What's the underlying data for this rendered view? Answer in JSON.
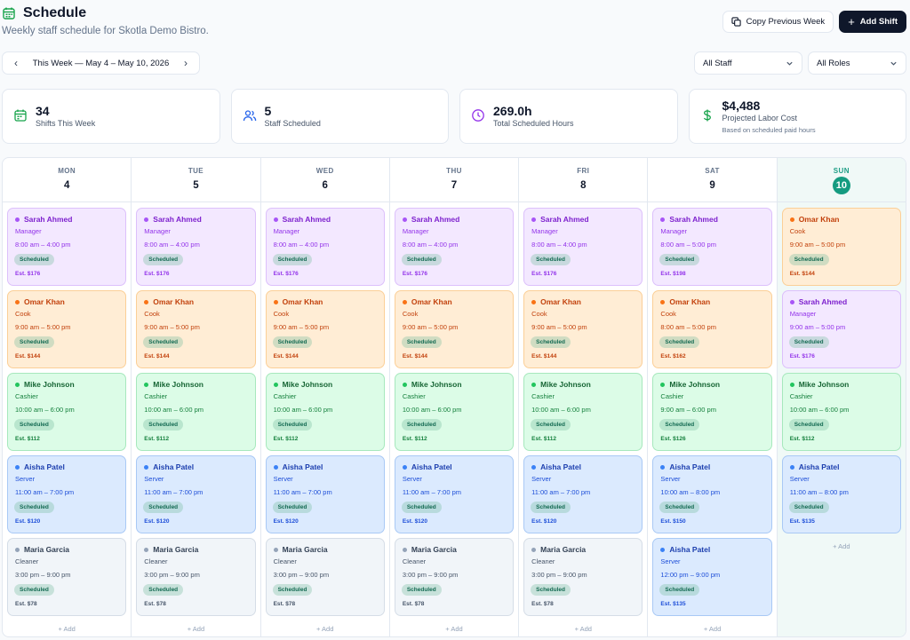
{
  "header": {
    "title": "Schedule",
    "subtitle": "Weekly staff schedule for Skotla Demo Bistro.",
    "copy_label": "Copy Previous Week",
    "add_label": "Add Shift"
  },
  "toolbar": {
    "week_label": "This Week — May 4 – May 10, 2026",
    "staff_filter": "All Staff",
    "role_filter": "All Roles"
  },
  "stats": [
    {
      "value": "34",
      "label": "Shifts This Week",
      "icon": "calendar-icon",
      "color": "#16a34a"
    },
    {
      "value": "5",
      "label": "Staff Scheduled",
      "icon": "users-icon",
      "color": "#2563eb"
    },
    {
      "value": "269.0h",
      "label": "Total Scheduled Hours",
      "icon": "clock-icon",
      "color": "#9333ea"
    },
    {
      "value": "$4,488",
      "label": "Projected Labor Cost",
      "note": "Based on scheduled paid hours",
      "icon": "dollar-icon",
      "color": "#16a34a"
    }
  ],
  "add_label": "+ Add",
  "days": [
    {
      "dow": "MON",
      "num": "4",
      "today": false,
      "shifts": [
        {
          "name": "Sarah Ahmed",
          "role": "Manager",
          "time": "8:00 am – 4:00 pm",
          "status": "Scheduled",
          "est": "Est. $176",
          "color": "purple"
        },
        {
          "name": "Omar Khan",
          "role": "Cook",
          "time": "9:00 am – 5:00 pm",
          "status": "Scheduled",
          "est": "Est. $144",
          "color": "orange"
        },
        {
          "name": "Mike Johnson",
          "role": "Cashier",
          "time": "10:00 am – 6:00 pm",
          "status": "Scheduled",
          "est": "Est. $112",
          "color": "green"
        },
        {
          "name": "Aisha Patel",
          "role": "Server",
          "time": "11:00 am – 7:00 pm",
          "status": "Scheduled",
          "est": "Est. $120",
          "color": "blue"
        },
        {
          "name": "Maria Garcia",
          "role": "Cleaner",
          "time": "3:00 pm – 9:00 pm",
          "status": "Scheduled",
          "est": "Est. $78",
          "color": "gray"
        }
      ]
    },
    {
      "dow": "TUE",
      "num": "5",
      "today": false,
      "shifts": [
        {
          "name": "Sarah Ahmed",
          "role": "Manager",
          "time": "8:00 am – 4:00 pm",
          "status": "Scheduled",
          "est": "Est. $176",
          "color": "purple"
        },
        {
          "name": "Omar Khan",
          "role": "Cook",
          "time": "9:00 am – 5:00 pm",
          "status": "Scheduled",
          "est": "Est. $144",
          "color": "orange"
        },
        {
          "name": "Mike Johnson",
          "role": "Cashier",
          "time": "10:00 am – 6:00 pm",
          "status": "Scheduled",
          "est": "Est. $112",
          "color": "green"
        },
        {
          "name": "Aisha Patel",
          "role": "Server",
          "time": "11:00 am – 7:00 pm",
          "status": "Scheduled",
          "est": "Est. $120",
          "color": "blue"
        },
        {
          "name": "Maria Garcia",
          "role": "Cleaner",
          "time": "3:00 pm – 9:00 pm",
          "status": "Scheduled",
          "est": "Est. $78",
          "color": "gray"
        }
      ]
    },
    {
      "dow": "WED",
      "num": "6",
      "today": false,
      "shifts": [
        {
          "name": "Sarah Ahmed",
          "role": "Manager",
          "time": "8:00 am – 4:00 pm",
          "status": "Scheduled",
          "est": "Est. $176",
          "color": "purple"
        },
        {
          "name": "Omar Khan",
          "role": "Cook",
          "time": "9:00 am – 5:00 pm",
          "status": "Scheduled",
          "est": "Est. $144",
          "color": "orange"
        },
        {
          "name": "Mike Johnson",
          "role": "Cashier",
          "time": "10:00 am – 6:00 pm",
          "status": "Scheduled",
          "est": "Est. $112",
          "color": "green"
        },
        {
          "name": "Aisha Patel",
          "role": "Server",
          "time": "11:00 am – 7:00 pm",
          "status": "Scheduled",
          "est": "Est. $120",
          "color": "blue"
        },
        {
          "name": "Maria Garcia",
          "role": "Cleaner",
          "time": "3:00 pm – 9:00 pm",
          "status": "Scheduled",
          "est": "Est. $78",
          "color": "gray"
        }
      ]
    },
    {
      "dow": "THU",
      "num": "7",
      "today": false,
      "shifts": [
        {
          "name": "Sarah Ahmed",
          "role": "Manager",
          "time": "8:00 am – 4:00 pm",
          "status": "Scheduled",
          "est": "Est. $176",
          "color": "purple"
        },
        {
          "name": "Omar Khan",
          "role": "Cook",
          "time": "9:00 am – 5:00 pm",
          "status": "Scheduled",
          "est": "Est. $144",
          "color": "orange"
        },
        {
          "name": "Mike Johnson",
          "role": "Cashier",
          "time": "10:00 am – 6:00 pm",
          "status": "Scheduled",
          "est": "Est. $112",
          "color": "green"
        },
        {
          "name": "Aisha Patel",
          "role": "Server",
          "time": "11:00 am – 7:00 pm",
          "status": "Scheduled",
          "est": "Est. $120",
          "color": "blue"
        },
        {
          "name": "Maria Garcia",
          "role": "Cleaner",
          "time": "3:00 pm – 9:00 pm",
          "status": "Scheduled",
          "est": "Est. $78",
          "color": "gray"
        }
      ]
    },
    {
      "dow": "FRI",
      "num": "8",
      "today": false,
      "shifts": [
        {
          "name": "Sarah Ahmed",
          "role": "Manager",
          "time": "8:00 am – 4:00 pm",
          "status": "Scheduled",
          "est": "Est. $176",
          "color": "purple"
        },
        {
          "name": "Omar Khan",
          "role": "Cook",
          "time": "9:00 am – 5:00 pm",
          "status": "Scheduled",
          "est": "Est. $144",
          "color": "orange"
        },
        {
          "name": "Mike Johnson",
          "role": "Cashier",
          "time": "10:00 am – 6:00 pm",
          "status": "Scheduled",
          "est": "Est. $112",
          "color": "green"
        },
        {
          "name": "Aisha Patel",
          "role": "Server",
          "time": "11:00 am – 7:00 pm",
          "status": "Scheduled",
          "est": "Est. $120",
          "color": "blue"
        },
        {
          "name": "Maria Garcia",
          "role": "Cleaner",
          "time": "3:00 pm – 9:00 pm",
          "status": "Scheduled",
          "est": "Est. $78",
          "color": "gray"
        }
      ]
    },
    {
      "dow": "SAT",
      "num": "9",
      "today": false,
      "shifts": [
        {
          "name": "Sarah Ahmed",
          "role": "Manager",
          "time": "8:00 am – 5:00 pm",
          "status": "Scheduled",
          "est": "Est. $198",
          "color": "purple"
        },
        {
          "name": "Omar Khan",
          "role": "Cook",
          "time": "8:00 am – 5:00 pm",
          "status": "Scheduled",
          "est": "Est. $162",
          "color": "orange"
        },
        {
          "name": "Mike Johnson",
          "role": "Cashier",
          "time": "9:00 am – 6:00 pm",
          "status": "Scheduled",
          "est": "Est. $126",
          "color": "green"
        },
        {
          "name": "Aisha Patel",
          "role": "Server",
          "time": "10:00 am – 8:00 pm",
          "status": "Scheduled",
          "est": "Est. $150",
          "color": "blue"
        },
        {
          "name": "Aisha Patel",
          "role": "Server",
          "time": "12:00 pm – 9:00 pm",
          "status": "Scheduled",
          "est": "Est. $135",
          "color": "blue"
        }
      ]
    },
    {
      "dow": "SUN",
      "num": "10",
      "today": true,
      "shifts": [
        {
          "name": "Omar Khan",
          "role": "Cook",
          "time": "9:00 am – 5:00 pm",
          "status": "Scheduled",
          "est": "Est. $144",
          "color": "orange"
        },
        {
          "name": "Sarah Ahmed",
          "role": "Manager",
          "time": "9:00 am – 5:00 pm",
          "status": "Scheduled",
          "est": "Est. $176",
          "color": "purple"
        },
        {
          "name": "Mike Johnson",
          "role": "Cashier",
          "time": "10:00 am – 6:00 pm",
          "status": "Scheduled",
          "est": "Est. $112",
          "color": "green"
        },
        {
          "name": "Aisha Patel",
          "role": "Server",
          "time": "11:00 am – 8:00 pm",
          "status": "Scheduled",
          "est": "Est. $135",
          "color": "blue"
        }
      ]
    }
  ]
}
